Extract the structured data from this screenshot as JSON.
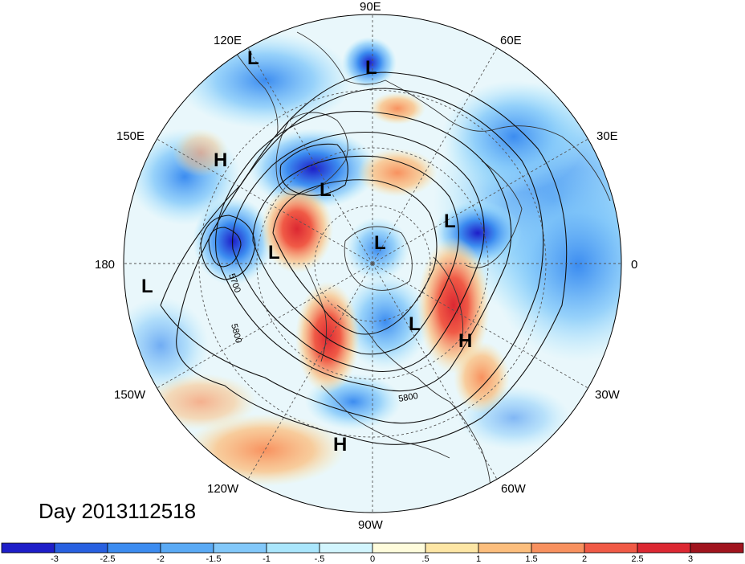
{
  "title": "Day 2013112518",
  "longitude_labels": [
    {
      "text": "90E",
      "lon": 90
    },
    {
      "text": "60E",
      "lon": 60
    },
    {
      "text": "30E",
      "lon": 30
    },
    {
      "text": "0",
      "lon": 0
    },
    {
      "text": "30W",
      "lon": -30
    },
    {
      "text": "60W",
      "lon": -60
    },
    {
      "text": "90W",
      "lon": -90
    },
    {
      "text": "120W",
      "lon": -120
    },
    {
      "text": "150W",
      "lon": -150
    },
    {
      "text": "180",
      "lon": 180
    },
    {
      "text": "150E",
      "lon": 150
    },
    {
      "text": "120E",
      "lon": 120
    }
  ],
  "pressure_centers": [
    {
      "text": "L",
      "kind": "low"
    },
    {
      "text": "L",
      "kind": "low"
    },
    {
      "text": "H",
      "kind": "high"
    },
    {
      "text": "L",
      "kind": "low"
    },
    {
      "text": "L",
      "kind": "low"
    },
    {
      "text": "L",
      "kind": "low"
    },
    {
      "text": "L",
      "kind": "low"
    },
    {
      "text": "L",
      "kind": "low"
    },
    {
      "text": "L",
      "kind": "low"
    },
    {
      "text": "H",
      "kind": "high"
    },
    {
      "text": "H",
      "kind": "high"
    }
  ],
  "contour_labels": [
    "5700",
    "5800",
    "5800"
  ],
  "colorbar": {
    "colors": [
      "#1e1ec8",
      "#2860e0",
      "#3c8cf0",
      "#5aaaf5",
      "#82c8fa",
      "#aae6fc",
      "#d2f5fe",
      "#fffcdc",
      "#fde6a5",
      "#fcbe7d",
      "#f8915f",
      "#f05a46",
      "#dc2832",
      "#a0141e"
    ],
    "tick_labels": [
      "-3",
      "-2.5",
      "-2",
      "-1.5",
      "-1",
      "-.5",
      "0",
      ".5",
      "1",
      "1.5",
      "2",
      "2.5",
      "3"
    ]
  },
  "colors": {
    "grid": "#555555",
    "contour": "#111111",
    "coast": "#333333"
  }
}
